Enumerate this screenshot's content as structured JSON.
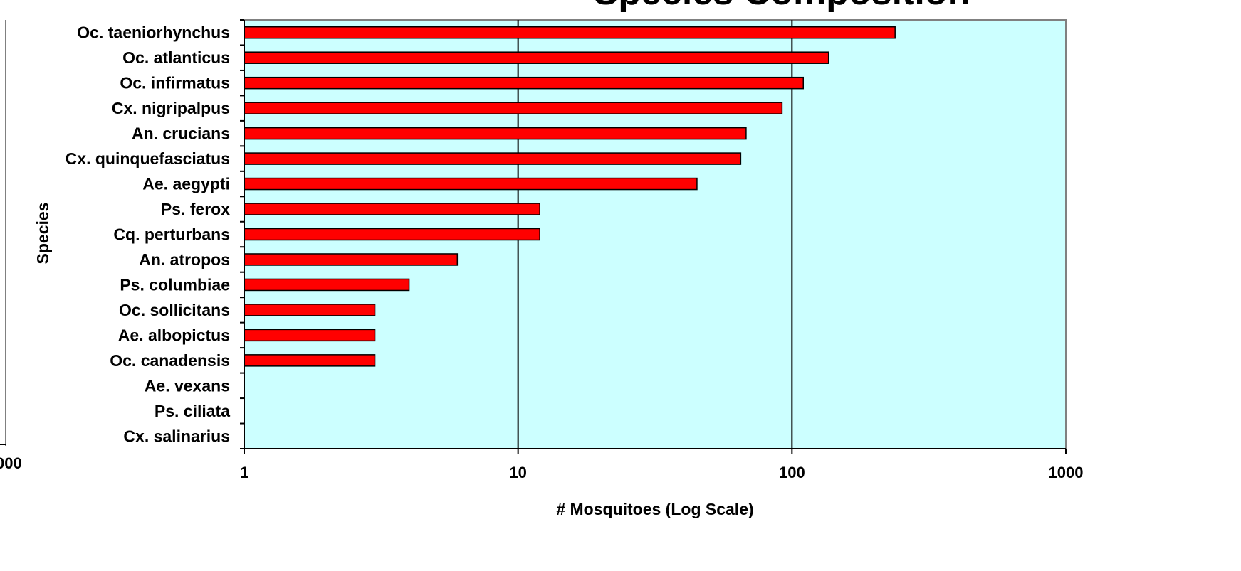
{
  "chart_data": {
    "type": "bar",
    "orientation": "horizontal",
    "title": "Species Composition",
    "xlabel": "# Mosquitoes (Log Scale)",
    "ylabel": "Species",
    "x_scale": "log",
    "xlim": [
      1,
      1000
    ],
    "x_ticks": [
      "1",
      "10",
      "100",
      "1000"
    ],
    "grid": "vertical major gridlines",
    "bar_color": "#ff0000",
    "plot_background": "#ccffff",
    "categories": [
      "Oc. taeniorhynchus",
      "Oc. atlanticus",
      "Oc. infirmatus",
      "Cx. nigripalpus",
      "An. crucians",
      "Cx. quinquefasciatus",
      "Ae. aegypti",
      "Ps. ferox",
      "Cq. perturbans",
      "An. atropos",
      "Ps. columbiae",
      "Oc. sollicitans",
      "Ae. albopictus",
      "Oc. canadensis",
      "Ae. vexans",
      "Ps. ciliata",
      "Cx. salinarius"
    ],
    "values": [
      238,
      136,
      110,
      92,
      68,
      65,
      45,
      12,
      12,
      6,
      4,
      3,
      3,
      3,
      0,
      0,
      0
    ],
    "left_panel_fragment_tick": "000"
  }
}
